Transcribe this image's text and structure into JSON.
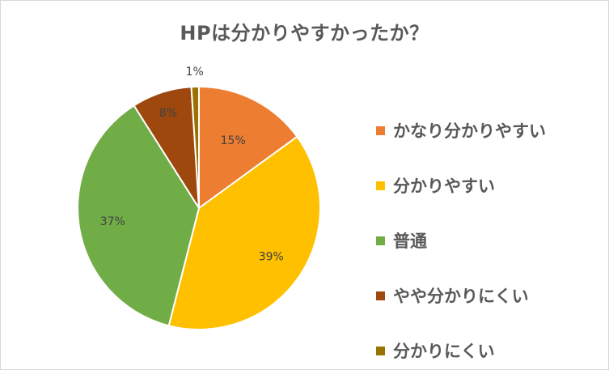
{
  "chart_data": {
    "type": "pie",
    "title": "HPは分かりやすかったか？",
    "categories": [
      "かなり分かりやすい",
      "分かりやすい",
      "普通",
      "やや分かりにくい",
      "分かりにくい"
    ],
    "values": [
      15,
      39,
      37,
      8,
      1
    ],
    "value_labels": [
      "15%",
      "39%",
      "37%",
      "8%",
      "1%"
    ],
    "colors": [
      "#ED7D31",
      "#FFC000",
      "#70AD47",
      "#9E480E",
      "#997300"
    ],
    "legend_position": "right",
    "start_angle": "12 o'clock",
    "direction": "clockwise",
    "slice_border_color": "#FFFFFF"
  }
}
